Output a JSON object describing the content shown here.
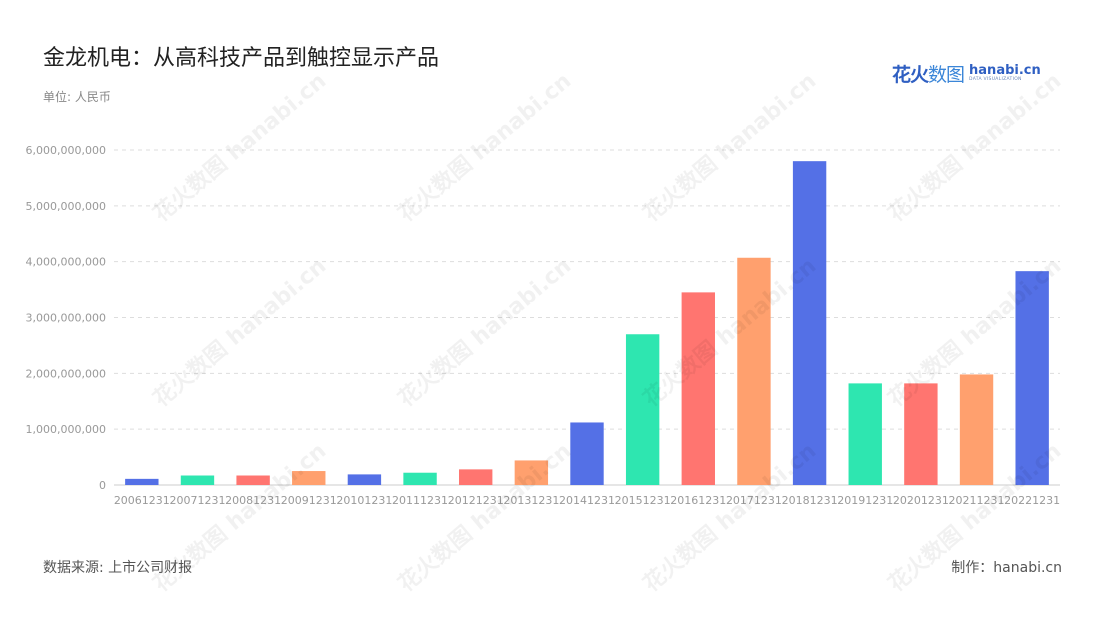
{
  "header": {
    "title": "金龙机电：从高科技产品到触控显示产品",
    "unit": "单位: 人民币"
  },
  "brand": {
    "logo_cn_1": "花火",
    "logo_cn_2": "数图",
    "logo_en": "hanabi.cn",
    "logo_tagline": "DATA VISUALIZATION"
  },
  "footer": {
    "source": "数据来源: 上市公司财报",
    "credit": "制作：hanabi.cn"
  },
  "watermark": {
    "text": "花火数图 hanabi.cn"
  },
  "chart_data": {
    "type": "bar",
    "categories": [
      "20061231",
      "20071231",
      "20081231",
      "20091231",
      "20101231",
      "20111231",
      "20121231",
      "20131231",
      "20141231",
      "20151231",
      "20161231",
      "20171231",
      "20181231",
      "20191231",
      "20201231",
      "20211231",
      "20221231"
    ],
    "values": [
      110000000,
      170000000,
      170000000,
      250000000,
      190000000,
      220000000,
      280000000,
      440000000,
      1120000000,
      2700000000,
      3450000000,
      4070000000,
      5800000000,
      1820000000,
      1820000000,
      1980000000,
      3830000000
    ],
    "colors": [
      "#5470e6",
      "#2ee6b0",
      "#ff7570",
      "#ffa06e",
      "#5470e6",
      "#2ee6b0",
      "#ff7570",
      "#ffa06e",
      "#5470e6",
      "#2ee6b0",
      "#ff7570",
      "#ffa06e",
      "#5470e6",
      "#2ee6b0",
      "#ff7570",
      "#ffa06e",
      "#5470e6"
    ],
    "yticks": [
      "0",
      "1,000,000,000",
      "2,000,000,000",
      "3,000,000,000",
      "4,000,000,000",
      "5,000,000,000",
      "6,000,000,000"
    ],
    "ylim": [
      0,
      6000000000
    ],
    "grid": true
  }
}
